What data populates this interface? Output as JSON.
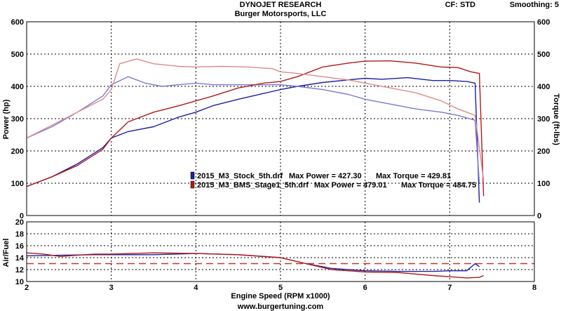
{
  "header": {
    "title": "DYNOJET RESEARCH",
    "subtitle": "Burger Motorsports, LLC",
    "cf_label": "CF: STD",
    "smoothing_label": "Smoothing: 5"
  },
  "footer": {
    "website": "www.burgertuning.com"
  },
  "chart_data": [
    {
      "type": "line",
      "title": "",
      "xlabel": "Engine Speed (RPM x1000)",
      "ylabel": "Power (hp)",
      "y2label": "Torque (ft-lbs)",
      "xlim": [
        2,
        8
      ],
      "ylim": [
        0,
        600
      ],
      "y2lim": [
        0,
        600
      ],
      "x_ticks": [
        2,
        3,
        4,
        5,
        6,
        7,
        8
      ],
      "y_ticks": [
        0,
        100,
        200,
        300,
        400,
        500,
        600
      ],
      "grid": true,
      "legend": [
        {
          "file": "2015_M3_Stock_5th.drf",
          "max_power_label": "Max Power = 427.30",
          "max_torque_label": "Max Torque = 429.81",
          "color": "#1f1f9e"
        },
        {
          "file": "2015_M3_BMS_Stage1_5th.drf",
          "max_power_label": "Max Power = 479.01",
          "max_torque_label": "Max Torque = 484.75",
          "color": "#b01a1a"
        }
      ],
      "series": [
        {
          "name": "2015_M3_Stock_5th.drf",
          "measure": "Power",
          "color": "#1f1f9e",
          "x": [
            2.0,
            2.3,
            2.6,
            2.9,
            3.0,
            3.2,
            3.5,
            3.8,
            4.0,
            4.2,
            4.5,
            4.8,
            5.0,
            5.2,
            5.5,
            5.8,
            6.0,
            6.2,
            6.5,
            6.8,
            7.0,
            7.2,
            7.3,
            7.35
          ],
          "y": [
            90,
            120,
            160,
            210,
            240,
            260,
            275,
            305,
            320,
            340,
            360,
            378,
            390,
            400,
            412,
            420,
            425,
            422,
            427,
            418,
            418,
            415,
            410,
            40
          ]
        },
        {
          "name": "2015_M3_Stock_5th.drf",
          "measure": "Torque",
          "color": "#7a7ad6",
          "x": [
            2.0,
            2.3,
            2.6,
            2.9,
            3.0,
            3.2,
            3.4,
            3.6,
            3.8,
            4.0,
            4.2,
            4.5,
            4.8,
            5.0,
            5.2,
            5.5,
            5.8,
            6.0,
            6.3,
            6.6,
            6.9,
            7.1,
            7.3,
            7.35
          ],
          "y": [
            240,
            275,
            320,
            370,
            405,
            430,
            410,
            400,
            405,
            410,
            405,
            405,
            405,
            405,
            400,
            390,
            375,
            360,
            345,
            330,
            320,
            310,
            295,
            100
          ]
        },
        {
          "name": "2015_M3_BMS_Stage1_5th.drf",
          "measure": "Power",
          "color": "#b01a1a",
          "x": [
            2.0,
            2.3,
            2.6,
            2.9,
            3.0,
            3.2,
            3.5,
            3.8,
            4.0,
            4.2,
            4.5,
            4.8,
            5.0,
            5.2,
            5.5,
            5.8,
            6.0,
            6.3,
            6.6,
            6.9,
            7.1,
            7.25,
            7.35,
            7.4
          ],
          "y": [
            90,
            120,
            155,
            205,
            240,
            290,
            320,
            340,
            355,
            370,
            395,
            410,
            415,
            430,
            460,
            472,
            478,
            479,
            472,
            460,
            458,
            445,
            440,
            60
          ]
        },
        {
          "name": "2015_M3_BMS_Stage1_5th.drf",
          "measure": "Torque",
          "color": "#e08a8a",
          "x": [
            2.0,
            2.3,
            2.6,
            2.9,
            3.0,
            3.1,
            3.3,
            3.5,
            3.8,
            4.0,
            4.3,
            4.6,
            4.9,
            5.0,
            5.2,
            5.5,
            5.8,
            6.0,
            6.3,
            6.6,
            6.9,
            7.1,
            7.3,
            7.4
          ],
          "y": [
            240,
            280,
            320,
            360,
            390,
            470,
            485,
            470,
            462,
            460,
            462,
            460,
            455,
            445,
            440,
            430,
            420,
            410,
            395,
            380,
            355,
            330,
            310,
            110
          ]
        }
      ]
    },
    {
      "type": "line",
      "title": "",
      "xlabel": "Engine Speed (RPM x1000)",
      "ylabel": "Air/Fuel",
      "xlim": [
        2,
        8
      ],
      "ylim": [
        10,
        20
      ],
      "x_ticks": [
        2,
        3,
        4,
        5,
        6,
        7,
        8
      ],
      "y_ticks": [
        10,
        12,
        14,
        16,
        18,
        20
      ],
      "grid": true,
      "reference_line": {
        "y": 13,
        "color": "#c0392b",
        "style": "dashed"
      },
      "series": [
        {
          "name": "2015_M3_Stock_5th.drf",
          "color": "#1f1f9e",
          "x": [
            2.0,
            2.4,
            2.8,
            3.0,
            3.5,
            4.0,
            4.5,
            5.0,
            5.3,
            5.6,
            6.0,
            6.4,
            6.8,
            7.0,
            7.2,
            7.3,
            7.35
          ],
          "y": [
            14.3,
            14.4,
            14.5,
            14.5,
            14.5,
            14.7,
            14.5,
            14.0,
            13.0,
            12.2,
            11.8,
            11.7,
            11.7,
            11.8,
            11.8,
            13.0,
            12.5
          ]
        },
        {
          "name": "2015_M3_BMS_Stage1_5th.drf",
          "color": "#b01a1a",
          "x": [
            2.0,
            2.2,
            2.4,
            2.8,
            3.0,
            3.5,
            4.0,
            4.5,
            5.0,
            5.3,
            5.6,
            6.0,
            6.4,
            6.8,
            7.0,
            7.2,
            7.35,
            7.4
          ],
          "y": [
            14.8,
            14.6,
            14.2,
            14.6,
            14.6,
            14.8,
            14.7,
            14.5,
            14.0,
            13.0,
            12.0,
            11.6,
            11.5,
            11.0,
            10.8,
            10.6,
            10.7,
            11.0
          ]
        }
      ]
    }
  ]
}
